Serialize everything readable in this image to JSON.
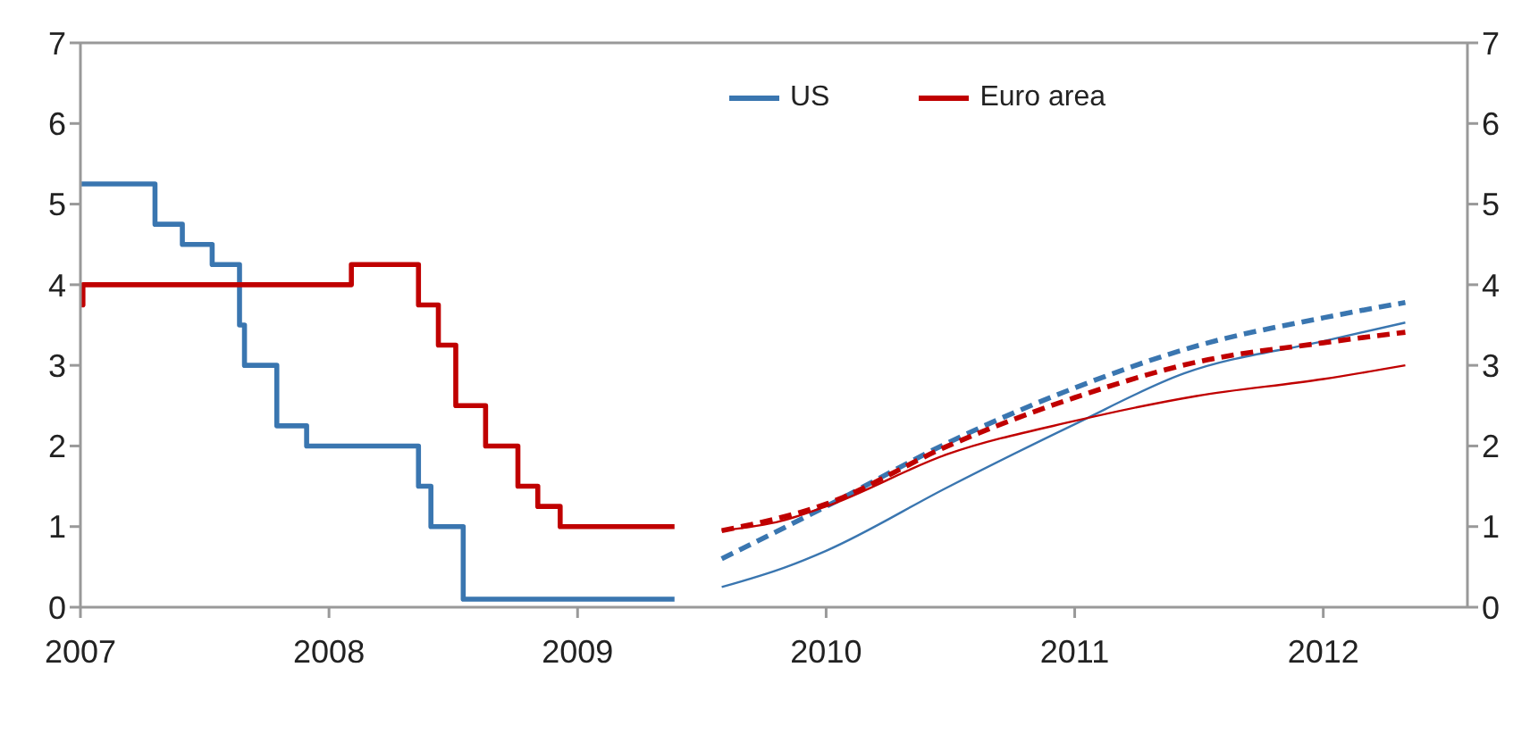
{
  "chart_data": {
    "type": "line",
    "xlim": [
      2007,
      2012.58
    ],
    "xticks": [
      2007,
      2008,
      2009,
      2010,
      2011,
      2012
    ],
    "ylim": [
      0,
      7
    ],
    "yticks": [
      0,
      1,
      2,
      3,
      4,
      5,
      6,
      7
    ],
    "y2lim": [
      0,
      7
    ],
    "y2ticks": [
      0,
      1,
      2,
      3,
      4,
      5,
      6,
      7
    ],
    "legend": "top",
    "marker": "none",
    "series": [
      {
        "name": "US",
        "type": "step",
        "color": "#3a76b0",
        "line_style": "solid",
        "x": [
          2007,
          2007.3,
          2007.41,
          2007.53,
          2007.64,
          2007.66,
          2007.79,
          2007.91,
          2008.36,
          2008.41,
          2008.54,
          2009.39
        ],
        "values": [
          5.25,
          4.75,
          4.5,
          4.25,
          3.5,
          3.0,
          2.25,
          2.0,
          1.5,
          1.0,
          0.1,
          0.1
        ]
      },
      {
        "name": "Euro area",
        "type": "step",
        "color": "#c00000",
        "line_style": "solid",
        "x": [
          2007,
          2007.01,
          2008.09,
          2008.36,
          2008.44,
          2008.51,
          2008.63,
          2008.76,
          2008.84,
          2008.93,
          2009.39
        ],
        "values": [
          3.75,
          4.0,
          4.25,
          3.75,
          3.25,
          2.5,
          2.0,
          1.5,
          1.25,
          1.0,
          1.0
        ]
      },
      {
        "color": "#3a76b0",
        "line_style": "solid",
        "x": [
          2009.58,
          2009.84,
          2010,
          2010.49,
          2011,
          2011.44,
          2012,
          2012.33
        ],
        "values": [
          0.25,
          0.5,
          0.7,
          1.49,
          2.27,
          2.9,
          3.3,
          3.53
        ]
      },
      {
        "color": "#3a76b0",
        "line_style": "dashed",
        "x": [
          2009.58,
          2010,
          2010.49,
          2011,
          2011.49,
          2012,
          2012.33
        ],
        "values": [
          0.6,
          1.25,
          2.04,
          2.72,
          3.24,
          3.59,
          3.78
        ]
      },
      {
        "color": "#c00000",
        "line_style": "solid",
        "x": [
          2009.58,
          2009.82,
          2010,
          2010.49,
          2011,
          2011.49,
          2012,
          2012.33
        ],
        "values": [
          0.95,
          1.07,
          1.25,
          1.9,
          2.31,
          2.62,
          2.83,
          3.0
        ]
      },
      {
        "color": "#c00000",
        "line_style": "dashed",
        "x": [
          2009.58,
          2010,
          2010.49,
          2011,
          2011.49,
          2012,
          2012.33
        ],
        "values": [
          0.95,
          1.28,
          2.0,
          2.6,
          3.04,
          3.28,
          3.41
        ]
      }
    ]
  }
}
